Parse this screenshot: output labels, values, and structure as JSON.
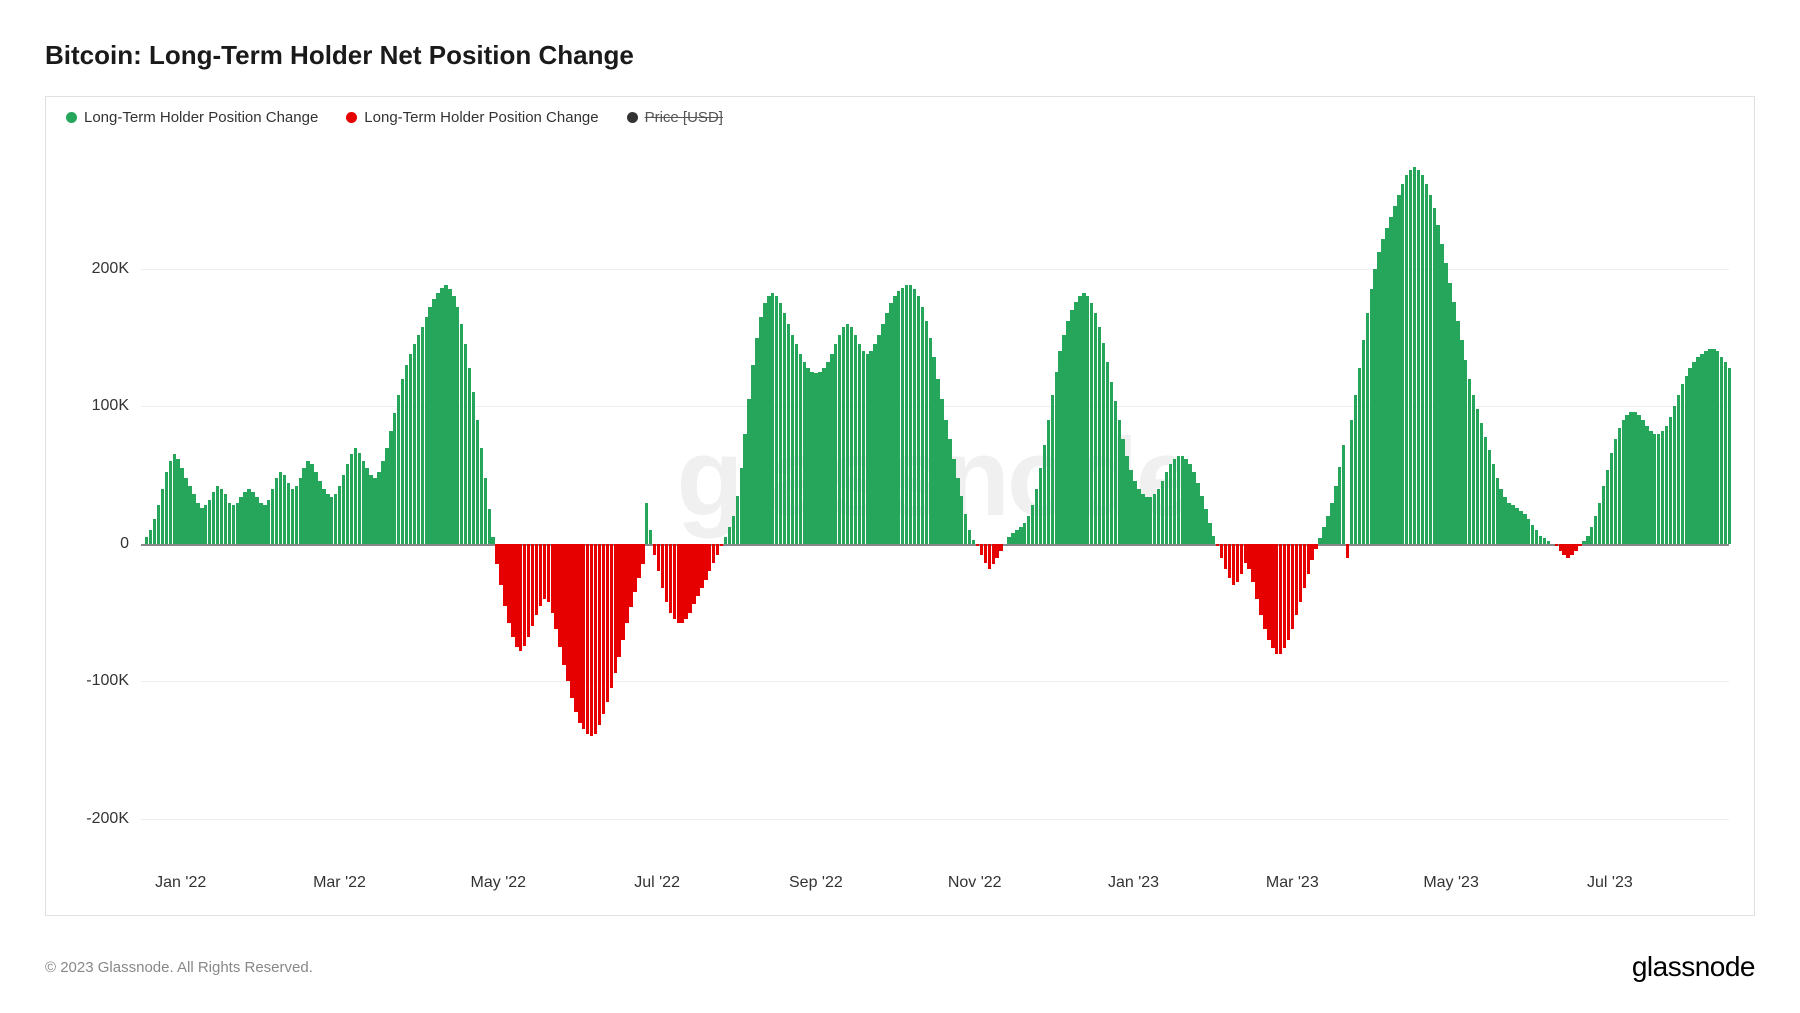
{
  "title": "Bitcoin: Long-Term Holder Net Position Change",
  "legend": {
    "positive": {
      "label": "Long-Term Holder Position Change",
      "color": "#26a65b"
    },
    "negative": {
      "label": "Long-Term Holder Position Change",
      "color": "#e60000"
    },
    "price": {
      "label": "Price [USD]",
      "color": "#333333"
    }
  },
  "watermark": "glassnode",
  "chart": {
    "type": "bar",
    "background_color": "#ffffff",
    "border_color": "#e0e0e0",
    "grid_color": "#eeeeee",
    "zero_line_color": "#888888",
    "positive_color": "#26a65b",
    "negative_color": "#e60000",
    "ylim": [
      -230,
      290
    ],
    "yticks": [
      -200,
      -100,
      0,
      100,
      200
    ],
    "ytick_labels": [
      "-200K",
      "-100K",
      "0",
      "100K",
      "200K"
    ],
    "xtick_labels": [
      "Jan '22",
      "Mar '22",
      "May '22",
      "Jul '22",
      "Sep '22",
      "Nov '22",
      "Jan '23",
      "Mar '23",
      "May '23",
      "Jul '23"
    ],
    "xtick_positions_pct": [
      2.5,
      12.5,
      22.5,
      32.5,
      42.5,
      52.5,
      62.5,
      72.5,
      82.5,
      92.5
    ],
    "label_fontsize": 16,
    "values": [
      0,
      5,
      10,
      18,
      28,
      40,
      52,
      60,
      65,
      62,
      55,
      48,
      42,
      36,
      30,
      26,
      28,
      32,
      38,
      42,
      40,
      36,
      30,
      28,
      30,
      34,
      38,
      40,
      38,
      34,
      30,
      28,
      32,
      40,
      48,
      52,
      50,
      44,
      40,
      42,
      48,
      55,
      60,
      58,
      52,
      46,
      40,
      36,
      34,
      36,
      42,
      50,
      58,
      65,
      70,
      66,
      60,
      55,
      50,
      48,
      52,
      60,
      70,
      82,
      95,
      108,
      120,
      130,
      138,
      145,
      152,
      158,
      165,
      172,
      178,
      182,
      186,
      188,
      185,
      180,
      172,
      160,
      145,
      128,
      110,
      90,
      70,
      48,
      25,
      5,
      -15,
      -30,
      -45,
      -58,
      -68,
      -75,
      -78,
      -74,
      -68,
      -60,
      -52,
      -45,
      -40,
      -42,
      -50,
      -62,
      -75,
      -88,
      -100,
      -112,
      -122,
      -130,
      -135,
      -138,
      -140,
      -138,
      -132,
      -124,
      -115,
      -105,
      -94,
      -82,
      -70,
      -58,
      -46,
      -35,
      -25,
      -15,
      30,
      10,
      -8,
      -20,
      -32,
      -42,
      -50,
      -55,
      -58,
      -58,
      -55,
      -50,
      -44,
      -38,
      -32,
      -26,
      -20,
      -14,
      -8,
      -2,
      5,
      12,
      20,
      35,
      55,
      80,
      105,
      130,
      150,
      165,
      175,
      180,
      182,
      180,
      175,
      168,
      160,
      152,
      145,
      138,
      132,
      128,
      125,
      124,
      125,
      128,
      132,
      138,
      145,
      152,
      158,
      160,
      158,
      152,
      145,
      140,
      138,
      140,
      145,
      152,
      160,
      168,
      175,
      180,
      184,
      186,
      188,
      188,
      185,
      180,
      172,
      162,
      150,
      136,
      120,
      105,
      90,
      76,
      62,
      48,
      35,
      22,
      10,
      3,
      -2,
      -8,
      -14,
      -18,
      -15,
      -10,
      -5,
      0,
      5,
      8,
      10,
      12,
      15,
      20,
      28,
      40,
      55,
      72,
      90,
      108,
      125,
      140,
      152,
      162,
      170,
      176,
      180,
      182,
      180,
      175,
      168,
      158,
      146,
      132,
      118,
      104,
      90,
      76,
      64,
      54,
      46,
      40,
      36,
      34,
      34,
      36,
      40,
      46,
      52,
      58,
      62,
      64,
      64,
      62,
      58,
      52,
      44,
      35,
      25,
      15,
      6,
      -2,
      -10,
      -18,
      -25,
      -30,
      -28,
      -22,
      -14,
      -18,
      -28,
      -40,
      -52,
      -62,
      -70,
      -76,
      -80,
      -80,
      -76,
      -70,
      -62,
      -52,
      -42,
      -32,
      -22,
      -12,
      -4,
      4,
      12,
      20,
      30,
      42,
      56,
      72,
      -10,
      90,
      108,
      128,
      148,
      168,
      185,
      200,
      212,
      222,
      230,
      238,
      246,
      254,
      262,
      268,
      272,
      274,
      272,
      268,
      262,
      254,
      244,
      232,
      218,
      204,
      190,
      176,
      162,
      148,
      134,
      120,
      108,
      98,
      88,
      78,
      68,
      58,
      48,
      40,
      34,
      30,
      28,
      26,
      24,
      22,
      18,
      14,
      10,
      6,
      4,
      2,
      0,
      -2,
      -5,
      -8,
      -10,
      -8,
      -5,
      -2,
      2,
      6,
      12,
      20,
      30,
      42,
      54,
      66,
      76,
      84,
      90,
      94,
      96,
      96,
      94,
      90,
      86,
      82,
      80,
      80,
      82,
      86,
      92,
      100,
      108,
      116,
      122,
      128,
      132,
      136,
      138,
      140,
      142,
      142,
      140,
      136,
      132,
      128
    ]
  },
  "footer": {
    "copyright": "© 2023 Glassnode. All Rights Reserved.",
    "brand": "glassnode"
  }
}
